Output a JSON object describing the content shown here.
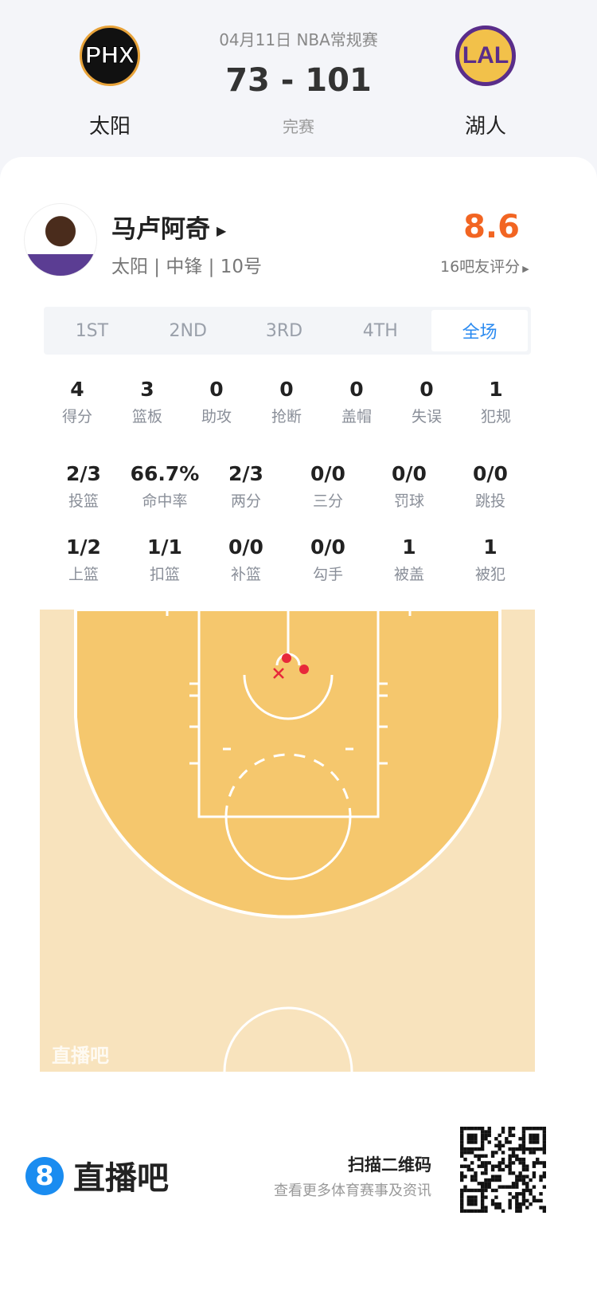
{
  "match": {
    "date_league": "04月11日 NBA常规赛",
    "score": "73 - 101",
    "status": "完赛",
    "home": {
      "name": "太阳",
      "logo_text": "PHX"
    },
    "away": {
      "name": "湖人",
      "logo_text": "LAL"
    }
  },
  "player": {
    "name": "马卢阿奇",
    "info": "太阳 | 中锋 | 10号",
    "rating": "8.6",
    "rating_label": "16吧友评分",
    "rating_color": "#f26522"
  },
  "tabs": [
    {
      "label": "1ST"
    },
    {
      "label": "2ND"
    },
    {
      "label": "3RD"
    },
    {
      "label": "4TH"
    },
    {
      "label": "全场",
      "active": true
    }
  ],
  "stats_row1": [
    {
      "v": "4",
      "l": "得分"
    },
    {
      "v": "3",
      "l": "篮板"
    },
    {
      "v": "0",
      "l": "助攻"
    },
    {
      "v": "0",
      "l": "抢断"
    },
    {
      "v": "0",
      "l": "盖帽"
    },
    {
      "v": "0",
      "l": "失误"
    },
    {
      "v": "1",
      "l": "犯规"
    }
  ],
  "stats_row2": [
    {
      "v": "2/3",
      "l": "投篮"
    },
    {
      "v": "66.7%",
      "l": "命中率"
    },
    {
      "v": "2/3",
      "l": "两分"
    },
    {
      "v": "0/0",
      "l": "三分"
    },
    {
      "v": "0/0",
      "l": "罚球"
    },
    {
      "v": "0/0",
      "l": "跳投"
    }
  ],
  "stats_row3": [
    {
      "v": "1/2",
      "l": "上篮"
    },
    {
      "v": "1/1",
      "l": "扣篮"
    },
    {
      "v": "0/0",
      "l": "补篮"
    },
    {
      "v": "0/0",
      "l": "勾手"
    },
    {
      "v": "1",
      "l": "被盖"
    },
    {
      "v": "1",
      "l": "被犯"
    }
  ],
  "shot_chart": {
    "watermark": "直播吧",
    "shots": [
      {
        "result": "made"
      },
      {
        "result": "made"
      },
      {
        "result": "missed"
      }
    ],
    "made_color": "#e8283a"
  },
  "footer": {
    "brand_mark": "8",
    "brand": "直播吧",
    "scan_title": "扫描二维码",
    "scan_sub": "查看更多体育赛事及资讯",
    "brand_color": "#1a8cf0"
  }
}
